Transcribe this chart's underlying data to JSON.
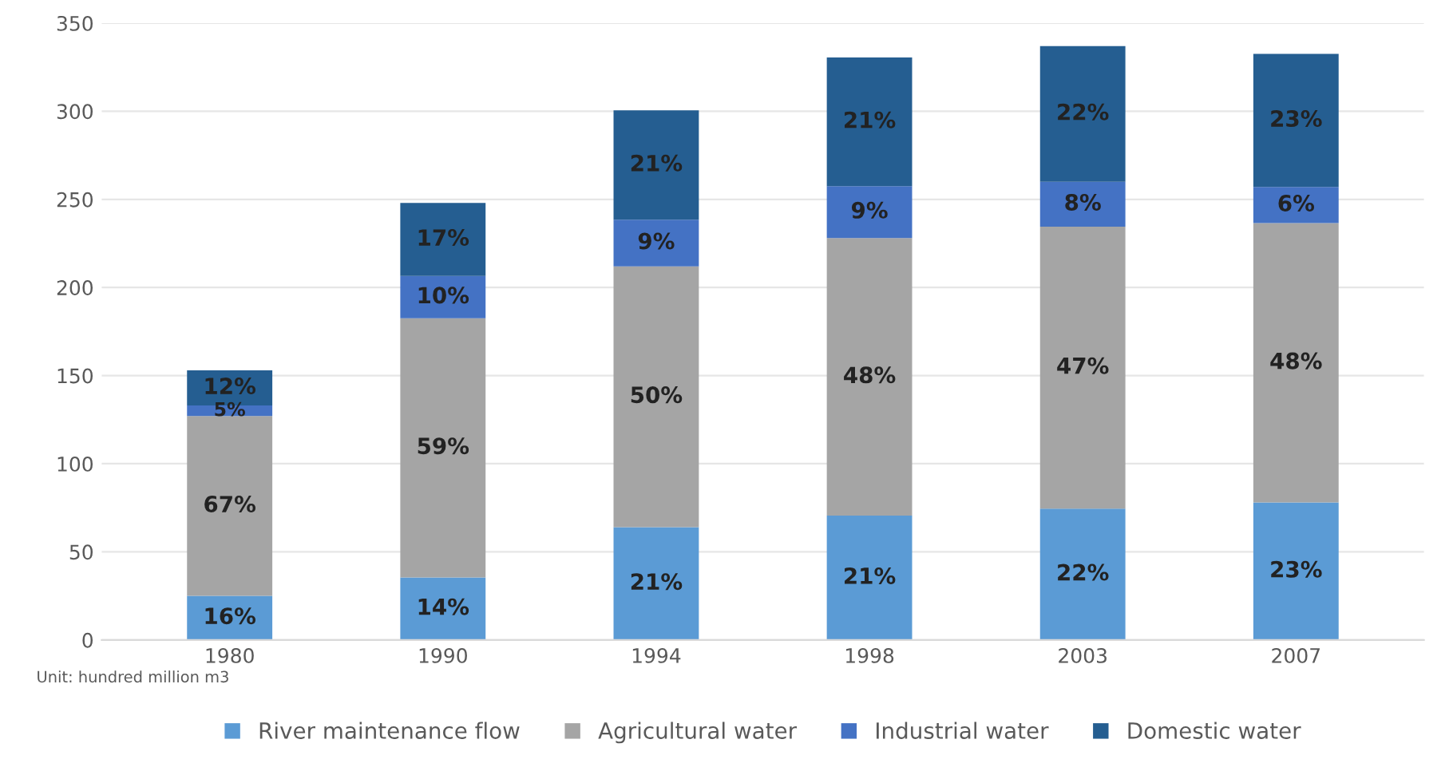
{
  "chart_data": {
    "type": "bar",
    "stacked": true,
    "categories": [
      "1980",
      "1990",
      "1994",
      "1998",
      "2003",
      "2007"
    ],
    "series": [
      {
        "name": "River maintenance flow",
        "color": "#5b9bd5",
        "values": [
          25,
          35.5,
          64,
          70.5,
          74.5,
          78
        ]
      },
      {
        "name": "Agricultural water",
        "color": "#a5a5a5",
        "values": [
          102,
          147,
          148,
          157.5,
          160,
          158.5
        ]
      },
      {
        "name": "Industrial water",
        "color": "#4472c4",
        "values": [
          6,
          24,
          26.5,
          29.5,
          25.5,
          20.5
        ]
      },
      {
        "name": "Domestic water",
        "color": "#255e91",
        "values": [
          20,
          41.5,
          62,
          73,
          77,
          75.5
        ]
      }
    ],
    "ylim": [
      0,
      350
    ],
    "yticks": [
      0,
      50,
      100,
      150,
      200,
      250,
      300,
      350
    ],
    "grid": "y",
    "legend": "bottom",
    "annotations": [
      "Unit: hundred million m3",
      "16%",
      "67%",
      "5%",
      "12%",
      "14%",
      "59%",
      "10%",
      "17%",
      "21%",
      "50%",
      "9%",
      "21%",
      "21%",
      "48%",
      "9%",
      "21%",
      "22%",
      "47%",
      "8%",
      "22%",
      "23%",
      "48%",
      "6%",
      "23%"
    ]
  }
}
